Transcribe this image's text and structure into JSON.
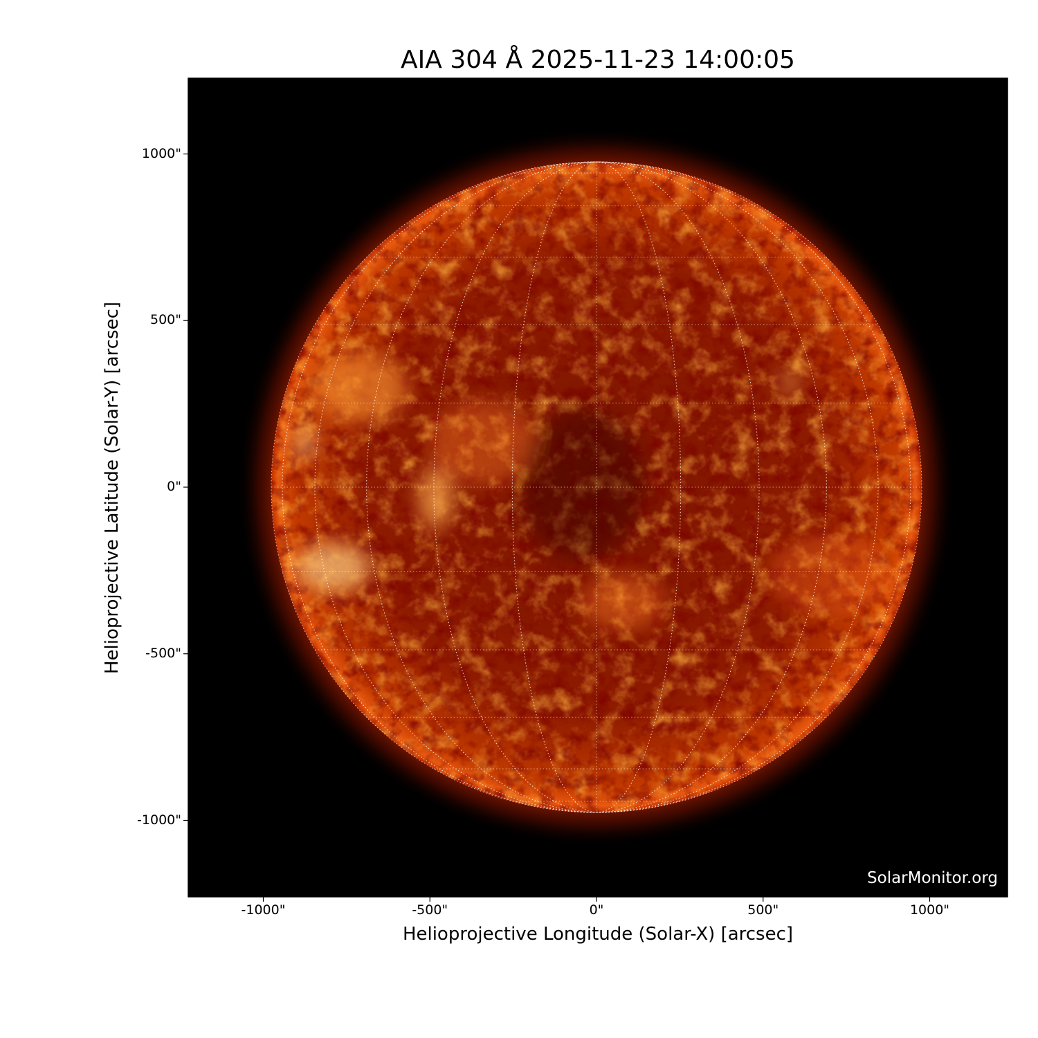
{
  "title": "AIA 304 Å 2025-11-23 14:00:05",
  "xlabel": "Helioprojective Longitude (Solar-X) [arcsec]",
  "ylabel": "Helioprojective Latitude (Solar-Y) [arcsec]",
  "credit": "SolarMonitor.org",
  "x_ticks": [
    {
      "value": -1000,
      "label": "-1000\""
    },
    {
      "value": -500,
      "label": "-500\""
    },
    {
      "value": 0,
      "label": "0\""
    },
    {
      "value": 500,
      "label": "500\""
    },
    {
      "value": 1000,
      "label": "1000\""
    }
  ],
  "y_ticks": [
    {
      "value": 1000,
      "label": "1000\""
    },
    {
      "value": 500,
      "label": "500\""
    },
    {
      "value": 0,
      "label": "0\""
    },
    {
      "value": -500,
      "label": "-500\""
    },
    {
      "value": -1000,
      "label": "-1000\""
    }
  ],
  "colors": {
    "background": "#000000",
    "disk_dark": "#5a0a00",
    "disk_mid": "#b52a00",
    "disk_bright": "#ff9a30",
    "grid": "#ffffff"
  }
}
